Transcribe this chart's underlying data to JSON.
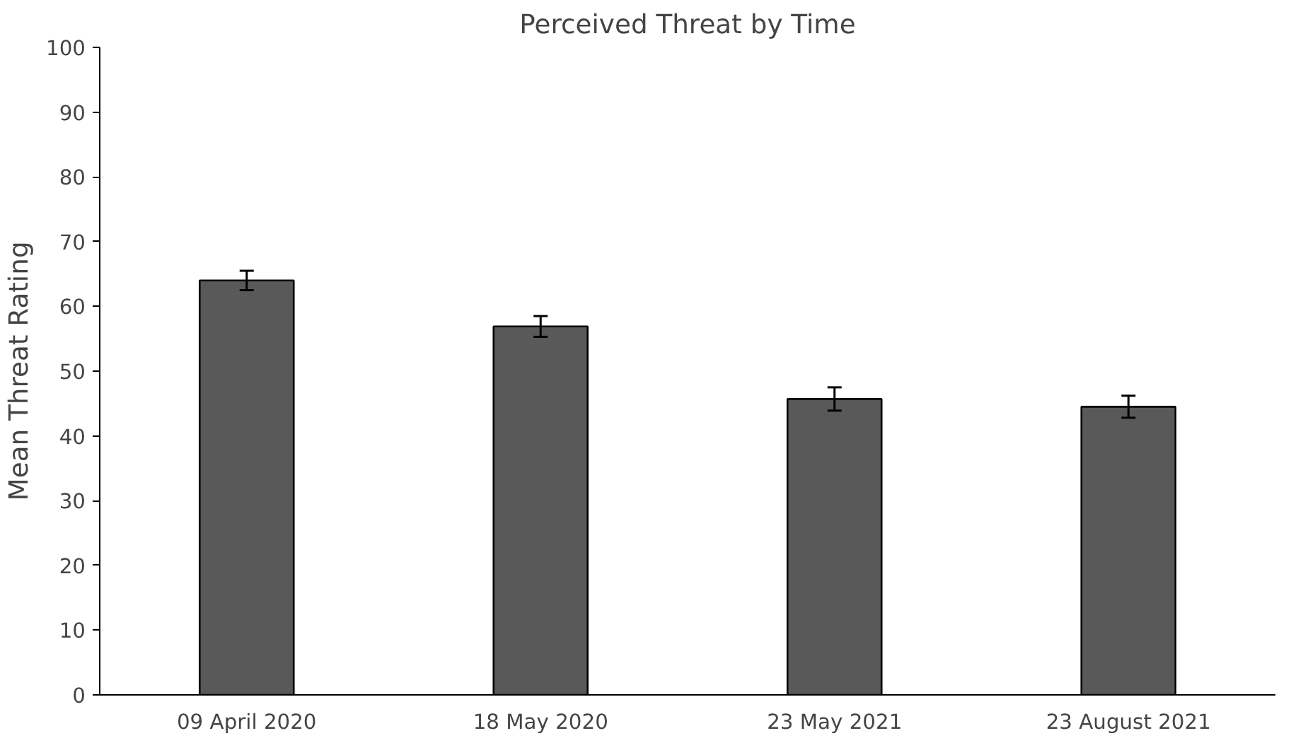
{
  "chart_data": {
    "type": "bar",
    "title": "Perceived Threat by Time",
    "ylabel": "Mean Threat Rating",
    "categories": [
      "09 April 2020",
      "18 May 2020",
      "23 May 2021",
      "23 August 2021"
    ],
    "values": [
      64,
      56.9,
      45.7,
      44.5
    ],
    "errors": [
      1.5,
      1.6,
      1.8,
      1.7
    ],
    "color": "#595959",
    "ylim": [
      0,
      100
    ],
    "yticks": [
      0,
      10,
      20,
      30,
      40,
      50,
      60,
      70,
      80,
      90,
      100
    ],
    "grid": false
  }
}
